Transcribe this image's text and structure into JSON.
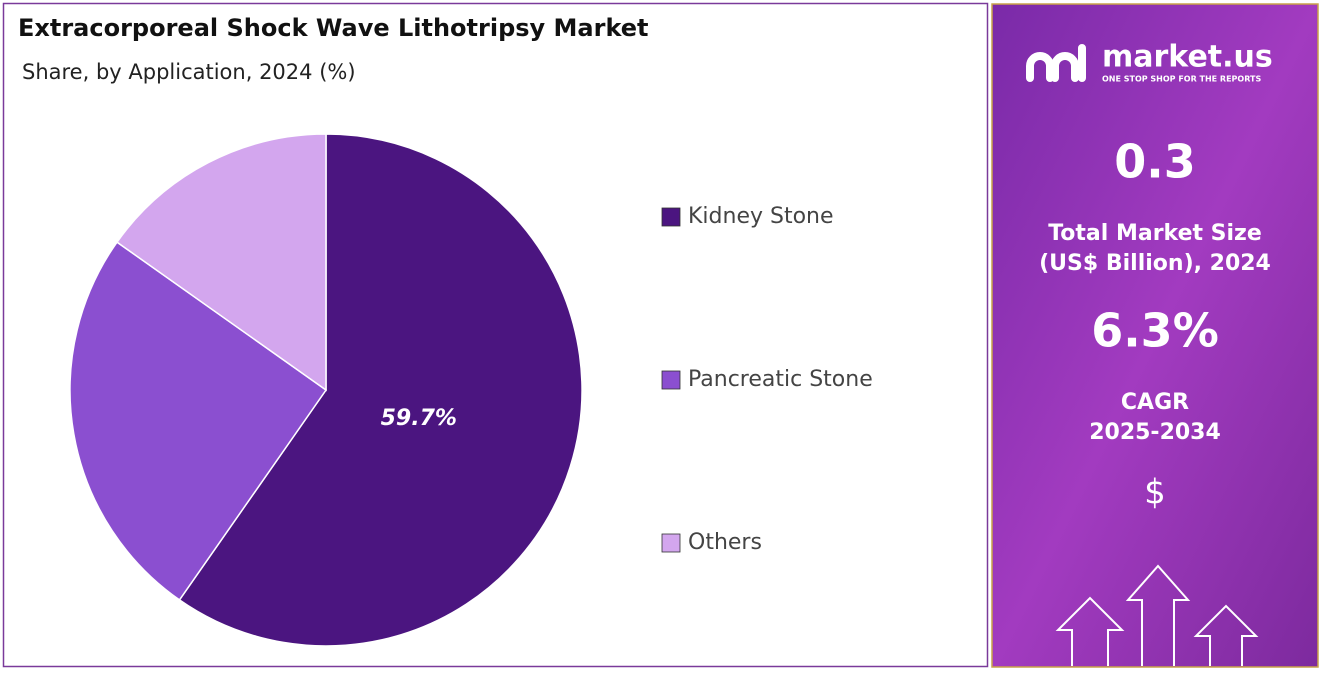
{
  "chart_data": {
    "type": "pie",
    "title": "Extracorporeal Shock Wave Lithotripsy Market",
    "subtitle": "Share, by Application, 2024 (%)",
    "categories": [
      "Kidney Stone",
      "Pancreatic Stone",
      "Others"
    ],
    "values": [
      59.7,
      25.1,
      15.2
    ],
    "value_labels": [
      "59.7%",
      null,
      null
    ],
    "colors": [
      "#4b1580",
      "#8b4fd0",
      "#d3a6ee"
    ],
    "legend": "right"
  },
  "panel": {
    "brand": "market.us",
    "tagline": "ONE STOP SHOP FOR THE REPORTS",
    "market_size": "0.3",
    "market_size_label": [
      "Total Market Size",
      "(US$ Billion), 2024"
    ],
    "cagr": "6.3%",
    "cagr_label": [
      "CAGR",
      "2025-2034"
    ],
    "currency": "$"
  }
}
